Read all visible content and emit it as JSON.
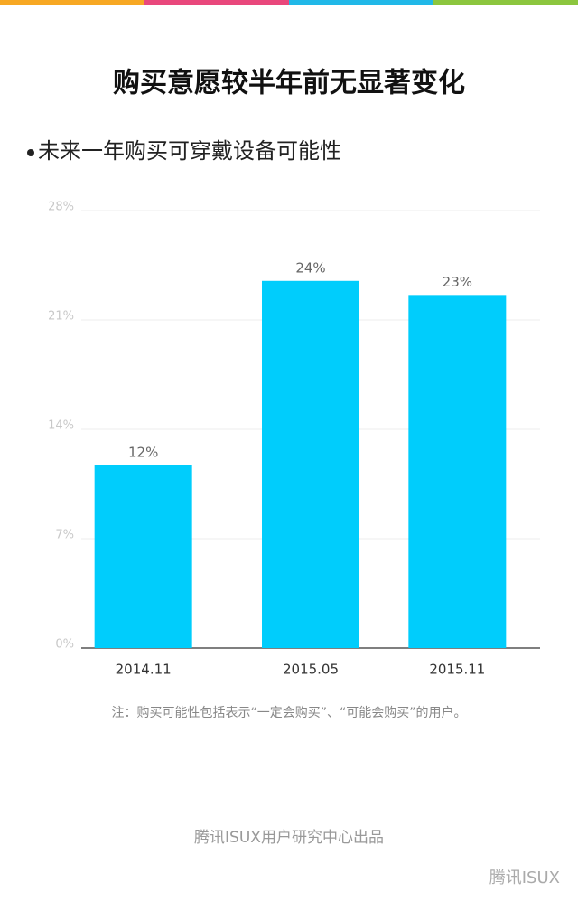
{
  "title": "购买意愿较半年前无显著变化",
  "chart_data": {
    "type": "bar",
    "subtitle": "未来一年购买可穿戴设备可能性",
    "categories": [
      "2014.11",
      "2015.05",
      "2015.11"
    ],
    "values": [
      11.7,
      23.5,
      22.6
    ],
    "value_labels": [
      "12%",
      "24%",
      "23%"
    ],
    "color": "#00cdfc",
    "ylim": [
      0,
      28
    ],
    "yticks": [
      {
        "value": 0,
        "label": "0%"
      },
      {
        "value": 7,
        "label": "7%"
      },
      {
        "value": 14,
        "label": "14%"
      },
      {
        "value": 21,
        "label": "21%"
      },
      {
        "value": 28,
        "label": "28%"
      }
    ],
    "grid": true,
    "note": "注：购买可能性包括表示“一定会购买”、“可能会购买”的用户。"
  },
  "footer": "腾讯ISUX用户研究中心出品",
  "watermark": "腾讯ISUX"
}
